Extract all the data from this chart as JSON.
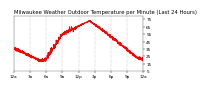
{
  "title": "Milwaukee Weather Outdoor Temperature per Minute (Last 24 Hours)",
  "line_color": "#ff0000",
  "bg_color": "#ffffff",
  "plot_bg_color": "#ffffff",
  "text_color": "#000000",
  "ylim": [
    5,
    80
  ],
  "yticks": [
    5,
    15,
    25,
    35,
    45,
    55,
    65,
    75
  ],
  "xlim": [
    0,
    1440
  ],
  "vgrid_positions": [
    0,
    180,
    360,
    540,
    720,
    900,
    1080,
    1260,
    1440
  ],
  "xtick_labels": [
    "12a",
    "3a",
    "6a",
    "9a",
    "12p",
    "3p",
    "6p",
    "9p",
    "12a"
  ],
  "fontsize_title": 3.8,
  "fontsize_ticks": 3.0,
  "lw": 0.55
}
